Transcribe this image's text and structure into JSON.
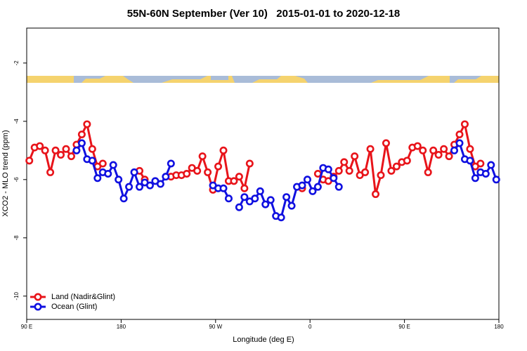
{
  "chart_data": {
    "type": "line",
    "title": "55N-60N September (Ver 10)   2015-01-01 to 2020-12-18",
    "xlabel": "Longitude (deg E)",
    "ylabel": "XCO2 - MLO trend (ppm)",
    "x": [
      92.5,
      97.5,
      102.5,
      107.5,
      112.5,
      117.5,
      122.5,
      127.5,
      132.5,
      137.5,
      142.5,
      147.5,
      152.5,
      157.5,
      162.5,
      167.5,
      172.5,
      177.5,
      182.5,
      187.5,
      192.5,
      197.5,
      202.5,
      207.5,
      212.5,
      217.5,
      222.5,
      227.5,
      232.5,
      237.5,
      242.5,
      247.5,
      252.5,
      257.5,
      262.5,
      267.5,
      272.5,
      277.5,
      282.5,
      287.5,
      292.5,
      297.5,
      302.5,
      307.5,
      312.5,
      317.5,
      322.5,
      327.5,
      332.5,
      337.5,
      342.5,
      347.5,
      352.5,
      357.5,
      362.5,
      367.5,
      372.5,
      377.5,
      382.5,
      387.5,
      392.5,
      397.5,
      402.5,
      407.5,
      412.5,
      417.5,
      422.5,
      427.5,
      432.5,
      437.5,
      442.5,
      447.5,
      452.5,
      457.5,
      462.5,
      467.5,
      472.5,
      477.5,
      482.5,
      487.5,
      492.5,
      497.5,
      502.5,
      507.5,
      512.5,
      517.5,
      522.5,
      527.5,
      532.5,
      537.5
    ],
    "series": [
      {
        "name": "Land (Nadir&Glint)",
        "color": "#e8141a",
        "values": [
          -5.35,
          -4.9,
          -4.85,
          -5.0,
          -5.75,
          -5.0,
          -5.15,
          -4.95,
          -5.2,
          -4.8,
          -4.45,
          -4.1,
          -4.95,
          -5.55,
          -5.45,
          null,
          null,
          null,
          null,
          null,
          null,
          -5.7,
          -6.0,
          null,
          null,
          null,
          null,
          -5.9,
          -5.85,
          -5.85,
          -5.8,
          -5.6,
          -5.7,
          -5.2,
          -5.75,
          -6.35,
          -5.55,
          -5.0,
          -6.05,
          -6.05,
          -5.9,
          -6.3,
          -5.45,
          null,
          null,
          null,
          null,
          null,
          null,
          null,
          null,
          null,
          -6.3,
          null,
          null,
          -5.8,
          -6.0,
          -6.05,
          -5.9,
          -5.7,
          -5.4,
          -5.7,
          -5.2,
          -5.85,
          -5.75,
          -4.95,
          -6.5,
          -5.85,
          -4.75,
          -5.7,
          -5.55,
          -5.4,
          -5.35,
          -4.9,
          -4.85,
          -5.0,
          -5.75,
          -5.0,
          -5.15,
          -4.95,
          -5.2,
          -4.8,
          -4.45,
          -4.1,
          -4.95,
          -5.55,
          -5.45,
          null,
          null,
          null
        ]
      },
      {
        "name": "Ocean (Glint)",
        "color": "#1010e0",
        "values": [
          null,
          null,
          null,
          null,
          null,
          null,
          null,
          null,
          null,
          -5.0,
          -4.75,
          -5.3,
          -5.35,
          -5.95,
          -5.75,
          -5.8,
          -5.5,
          -6.0,
          -6.65,
          -6.25,
          -5.75,
          -6.25,
          -6.1,
          -6.2,
          -6.05,
          -6.15,
          -5.9,
          -5.45,
          null,
          null,
          null,
          null,
          null,
          null,
          null,
          -6.2,
          -6.3,
          -6.3,
          -6.65,
          null,
          -6.95,
          -6.6,
          -6.75,
          -6.65,
          -6.4,
          -6.85,
          -6.7,
          -7.25,
          -7.3,
          -6.6,
          -6.9,
          -6.25,
          -6.2,
          -6.0,
          -6.4,
          -6.25,
          -5.6,
          -5.65,
          -5.95,
          -6.25,
          null,
          null,
          null,
          null,
          null,
          null,
          null,
          null,
          null,
          null,
          null,
          null,
          null,
          null,
          null,
          null,
          null,
          null,
          null,
          null,
          null,
          -5.0,
          -4.75,
          -5.3,
          -5.35,
          -5.95,
          -5.75,
          -5.8,
          -5.5,
          -6.0
        ]
      }
    ],
    "xlim": [
      90,
      540
    ],
    "xticks": [
      {
        "value": 90,
        "label": "90 E"
      },
      180,
      {
        "value": 270,
        "label": "90 W"
      },
      {
        "value": 360,
        "label": "0"
      },
      {
        "value": 450,
        "label": "90 E"
      },
      {
        "value": 540,
        "label": "180"
      }
    ],
    "ylim": [
      -10.8,
      -0.8
    ],
    "yticks": [
      -10,
      -8,
      -6,
      -4,
      -2
    ],
    "legend": "bottom-left"
  }
}
